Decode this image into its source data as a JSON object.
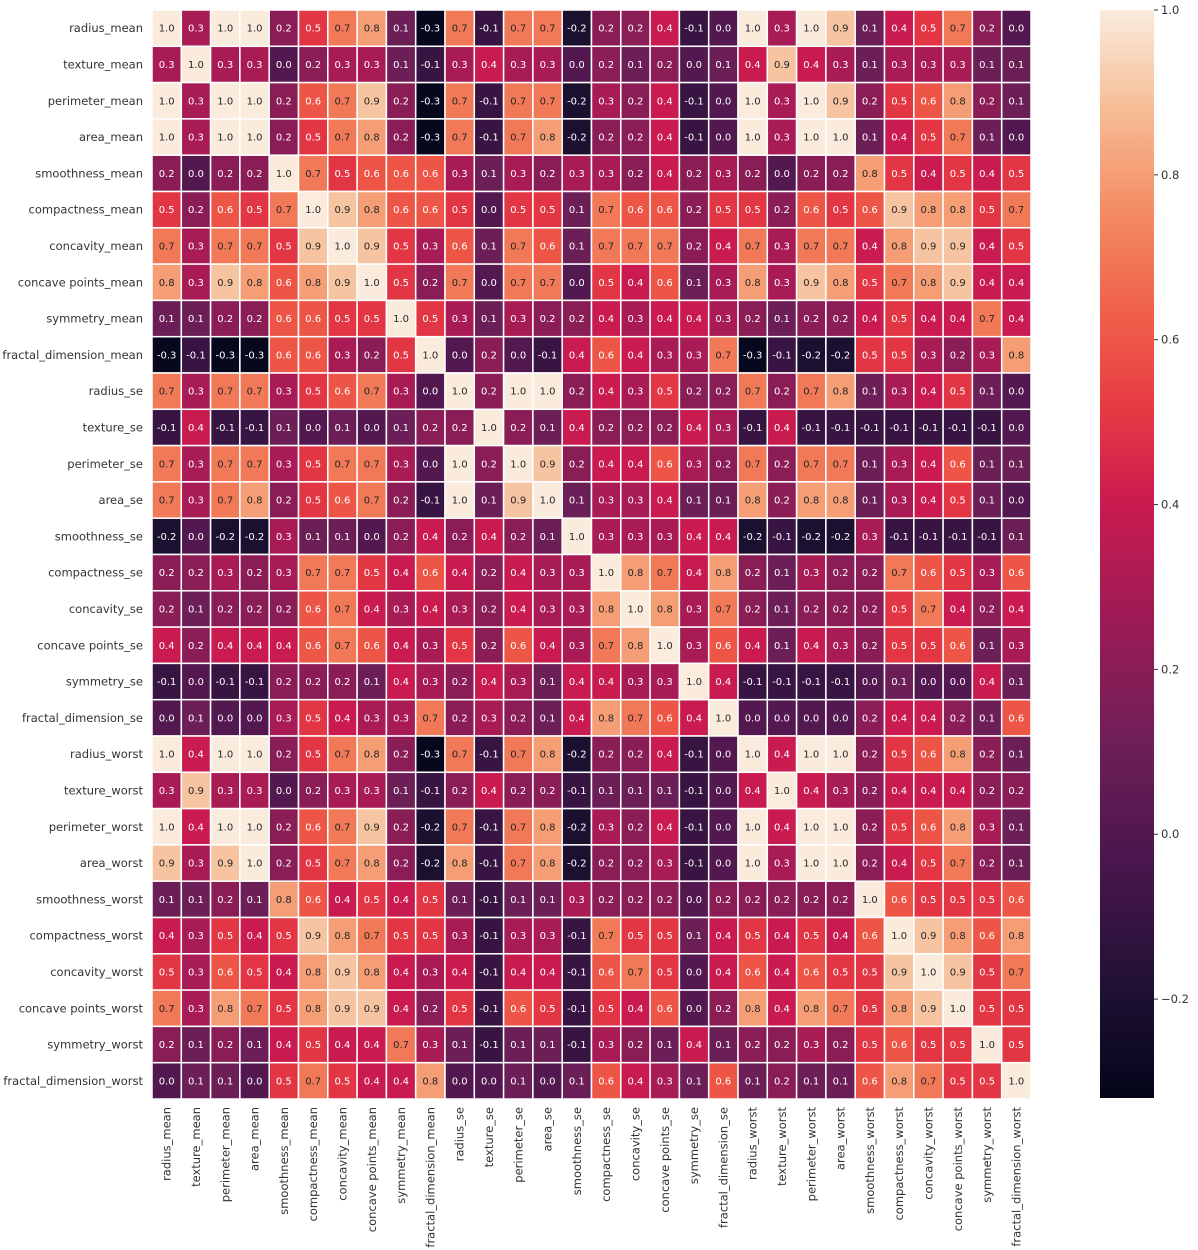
{
  "chart_data": {
    "type": "heatmap",
    "title": "",
    "variables": [
      "radius_mean",
      "texture_mean",
      "perimeter_mean",
      "area_mean",
      "smoothness_mean",
      "compactness_mean",
      "concavity_mean",
      "concave points_mean",
      "symmetry_mean",
      "fractal_dimension_mean",
      "radius_se",
      "texture_se",
      "perimeter_se",
      "area_se",
      "smoothness_se",
      "compactness_se",
      "concavity_se",
      "concave points_se",
      "symmetry_se",
      "fractal_dimension_se",
      "radius_worst",
      "texture_worst",
      "perimeter_worst",
      "area_worst",
      "smoothness_worst",
      "compactness_worst",
      "concavity_worst",
      "concave points_worst",
      "symmetry_worst",
      "fractal_dimension_worst"
    ],
    "matrix": [
      [
        1.0,
        0.3,
        1.0,
        1.0,
        0.2,
        0.5,
        0.7,
        0.8,
        0.1,
        -0.3,
        0.7,
        -0.1,
        0.7,
        0.7,
        -0.2,
        0.2,
        0.2,
        0.4,
        -0.1,
        -0.0,
        1.0,
        0.3,
        1.0,
        0.9,
        0.1,
        0.4,
        0.5,
        0.7,
        0.2,
        0.0
      ],
      [
        0.3,
        1.0,
        0.3,
        0.3,
        -0.0,
        0.2,
        0.3,
        0.3,
        0.1,
        -0.1,
        0.3,
        0.4,
        0.3,
        0.3,
        0.0,
        0.2,
        0.1,
        0.2,
        0.0,
        0.1,
        0.4,
        0.9,
        0.4,
        0.3,
        0.1,
        0.3,
        0.3,
        0.3,
        0.1,
        0.1
      ],
      [
        1.0,
        0.3,
        1.0,
        1.0,
        0.2,
        0.6,
        0.7,
        0.9,
        0.2,
        -0.3,
        0.7,
        -0.1,
        0.7,
        0.7,
        -0.2,
        0.3,
        0.2,
        0.4,
        -0.1,
        -0.0,
        1.0,
        0.3,
        1.0,
        0.9,
        0.2,
        0.5,
        0.6,
        0.8,
        0.2,
        0.1
      ],
      [
        1.0,
        0.3,
        1.0,
        1.0,
        0.2,
        0.5,
        0.7,
        0.8,
        0.2,
        -0.3,
        0.7,
        -0.1,
        0.7,
        0.8,
        -0.2,
        0.2,
        0.2,
        0.4,
        -0.1,
        -0.0,
        1.0,
        0.3,
        1.0,
        1.0,
        0.1,
        0.4,
        0.5,
        0.7,
        0.1,
        0.0
      ],
      [
        0.2,
        -0.0,
        0.2,
        0.2,
        1.0,
        0.7,
        0.5,
        0.6,
        0.6,
        0.6,
        0.3,
        0.1,
        0.3,
        0.2,
        0.3,
        0.3,
        0.2,
        0.4,
        0.2,
        0.3,
        0.2,
        0.0,
        0.2,
        0.2,
        0.8,
        0.5,
        0.4,
        0.5,
        0.4,
        0.5
      ],
      [
        0.5,
        0.2,
        0.6,
        0.5,
        0.7,
        1.0,
        0.9,
        0.8,
        0.6,
        0.6,
        0.5,
        0.0,
        0.5,
        0.5,
        0.1,
        0.7,
        0.6,
        0.6,
        0.2,
        0.5,
        0.5,
        0.2,
        0.6,
        0.5,
        0.6,
        0.9,
        0.8,
        0.8,
        0.5,
        0.7
      ],
      [
        0.7,
        0.3,
        0.7,
        0.7,
        0.5,
        0.9,
        1.0,
        0.9,
        0.5,
        0.3,
        0.6,
        0.1,
        0.7,
        0.6,
        0.1,
        0.7,
        0.7,
        0.7,
        0.2,
        0.4,
        0.7,
        0.3,
        0.7,
        0.7,
        0.4,
        0.8,
        0.9,
        0.9,
        0.4,
        0.5
      ],
      [
        0.8,
        0.3,
        0.9,
        0.8,
        0.6,
        0.8,
        0.9,
        1.0,
        0.5,
        0.2,
        0.7,
        0.0,
        0.7,
        0.7,
        0.0,
        0.5,
        0.4,
        0.6,
        0.1,
        0.3,
        0.8,
        0.3,
        0.9,
        0.8,
        0.5,
        0.7,
        0.8,
        0.9,
        0.4,
        0.4
      ],
      [
        0.1,
        0.1,
        0.2,
        0.2,
        0.6,
        0.6,
        0.5,
        0.5,
        1.0,
        0.5,
        0.3,
        0.1,
        0.3,
        0.2,
        0.2,
        0.4,
        0.3,
        0.4,
        0.4,
        0.3,
        0.2,
        0.1,
        0.2,
        0.2,
        0.4,
        0.5,
        0.4,
        0.4,
        0.7,
        0.4
      ],
      [
        -0.3,
        -0.1,
        -0.3,
        -0.3,
        0.6,
        0.6,
        0.3,
        0.2,
        0.5,
        1.0,
        0.0,
        0.2,
        0.0,
        -0.1,
        0.4,
        0.6,
        0.4,
        0.3,
        0.3,
        0.7,
        -0.3,
        -0.1,
        -0.2,
        -0.2,
        0.5,
        0.5,
        0.3,
        0.2,
        0.3,
        0.8
      ],
      [
        0.7,
        0.3,
        0.7,
        0.7,
        0.3,
        0.5,
        0.6,
        0.7,
        0.3,
        0.0,
        1.0,
        0.2,
        1.0,
        1.0,
        0.2,
        0.4,
        0.3,
        0.5,
        0.2,
        0.2,
        0.7,
        0.2,
        0.7,
        0.8,
        0.1,
        0.3,
        0.4,
        0.5,
        0.1,
        0.0
      ],
      [
        -0.1,
        0.4,
        -0.1,
        -0.1,
        0.1,
        0.0,
        0.1,
        0.0,
        0.1,
        0.2,
        0.2,
        1.0,
        0.2,
        0.1,
        0.4,
        0.2,
        0.2,
        0.2,
        0.4,
        0.3,
        -0.1,
        0.4,
        -0.1,
        -0.1,
        -0.1,
        -0.1,
        -0.1,
        -0.1,
        -0.1,
        -0.0
      ],
      [
        0.7,
        0.3,
        0.7,
        0.7,
        0.3,
        0.5,
        0.7,
        0.7,
        0.3,
        0.0,
        1.0,
        0.2,
        1.0,
        0.9,
        0.2,
        0.4,
        0.4,
        0.6,
        0.3,
        0.2,
        0.7,
        0.2,
        0.7,
        0.7,
        0.1,
        0.3,
        0.4,
        0.6,
        0.1,
        0.1
      ],
      [
        0.7,
        0.3,
        0.7,
        0.8,
        0.2,
        0.5,
        0.6,
        0.7,
        0.2,
        -0.1,
        1.0,
        0.1,
        0.9,
        1.0,
        0.1,
        0.3,
        0.3,
        0.4,
        0.1,
        0.1,
        0.8,
        0.2,
        0.8,
        0.8,
        0.1,
        0.3,
        0.4,
        0.5,
        0.1,
        0.0
      ],
      [
        -0.2,
        0.0,
        -0.2,
        -0.2,
        0.3,
        0.1,
        0.1,
        0.0,
        0.2,
        0.4,
        0.2,
        0.4,
        0.2,
        0.1,
        1.0,
        0.3,
        0.3,
        0.3,
        0.4,
        0.4,
        -0.2,
        -0.1,
        -0.2,
        -0.2,
        0.3,
        -0.1,
        -0.1,
        -0.1,
        -0.1,
        0.1
      ],
      [
        0.2,
        0.2,
        0.3,
        0.2,
        0.3,
        0.7,
        0.7,
        0.5,
        0.4,
        0.6,
        0.4,
        0.2,
        0.4,
        0.3,
        0.3,
        1.0,
        0.8,
        0.7,
        0.4,
        0.8,
        0.2,
        0.1,
        0.3,
        0.2,
        0.2,
        0.7,
        0.6,
        0.5,
        0.3,
        0.6
      ],
      [
        0.2,
        0.1,
        0.2,
        0.2,
        0.2,
        0.6,
        0.7,
        0.4,
        0.3,
        0.4,
        0.3,
        0.2,
        0.4,
        0.3,
        0.3,
        0.8,
        1.0,
        0.8,
        0.3,
        0.7,
        0.2,
        0.1,
        0.2,
        0.2,
        0.2,
        0.5,
        0.7,
        0.4,
        0.2,
        0.4
      ],
      [
        0.4,
        0.2,
        0.4,
        0.4,
        0.4,
        0.6,
        0.7,
        0.6,
        0.4,
        0.3,
        0.5,
        0.2,
        0.6,
        0.4,
        0.3,
        0.7,
        0.8,
        1.0,
        0.3,
        0.6,
        0.4,
        0.1,
        0.4,
        0.3,
        0.2,
        0.5,
        0.5,
        0.6,
        0.1,
        0.3
      ],
      [
        -0.1,
        0.0,
        -0.1,
        -0.1,
        0.2,
        0.2,
        0.2,
        0.1,
        0.4,
        0.3,
        0.2,
        0.4,
        0.3,
        0.1,
        0.4,
        0.4,
        0.3,
        0.3,
        1.0,
        0.4,
        -0.1,
        -0.1,
        -0.1,
        -0.1,
        -0.0,
        0.1,
        0.0,
        -0.0,
        0.4,
        0.1
      ],
      [
        -0.0,
        0.1,
        -0.0,
        -0.0,
        0.3,
        0.5,
        0.4,
        0.3,
        0.3,
        0.7,
        0.2,
        0.3,
        0.2,
        0.1,
        0.4,
        0.8,
        0.7,
        0.6,
        0.4,
        1.0,
        -0.0,
        -0.0,
        -0.0,
        -0.0,
        0.2,
        0.4,
        0.4,
        0.2,
        0.1,
        0.6
      ],
      [
        1.0,
        0.4,
        1.0,
        1.0,
        0.2,
        0.5,
        0.7,
        0.8,
        0.2,
        -0.3,
        0.7,
        -0.1,
        0.7,
        0.8,
        -0.2,
        0.2,
        0.2,
        0.4,
        -0.1,
        -0.0,
        1.0,
        0.4,
        1.0,
        1.0,
        0.2,
        0.5,
        0.6,
        0.8,
        0.2,
        0.1
      ],
      [
        0.3,
        0.9,
        0.3,
        0.3,
        0.0,
        0.2,
        0.3,
        0.3,
        0.1,
        -0.1,
        0.2,
        0.4,
        0.2,
        0.2,
        -0.1,
        0.1,
        0.1,
        0.1,
        -0.1,
        -0.0,
        0.4,
        1.0,
        0.4,
        0.3,
        0.2,
        0.4,
        0.4,
        0.4,
        0.2,
        0.2
      ],
      [
        1.0,
        0.4,
        1.0,
        1.0,
        0.2,
        0.6,
        0.7,
        0.9,
        0.2,
        -0.2,
        0.7,
        -0.1,
        0.7,
        0.8,
        -0.2,
        0.3,
        0.2,
        0.4,
        -0.1,
        -0.0,
        1.0,
        0.4,
        1.0,
        1.0,
        0.2,
        0.5,
        0.6,
        0.8,
        0.3,
        0.1
      ],
      [
        0.9,
        0.3,
        0.9,
        1.0,
        0.2,
        0.5,
        0.7,
        0.8,
        0.2,
        -0.2,
        0.8,
        -0.1,
        0.7,
        0.8,
        -0.2,
        0.2,
        0.2,
        0.3,
        -0.1,
        -0.0,
        1.0,
        0.3,
        1.0,
        1.0,
        0.2,
        0.4,
        0.5,
        0.7,
        0.2,
        0.1
      ],
      [
        0.1,
        0.1,
        0.2,
        0.1,
        0.8,
        0.6,
        0.4,
        0.5,
        0.4,
        0.5,
        0.1,
        -0.1,
        0.1,
        0.1,
        0.3,
        0.2,
        0.2,
        0.2,
        -0.0,
        0.2,
        0.2,
        0.2,
        0.2,
        0.2,
        1.0,
        0.6,
        0.5,
        0.5,
        0.5,
        0.6
      ],
      [
        0.4,
        0.3,
        0.5,
        0.4,
        0.5,
        0.9,
        0.8,
        0.7,
        0.5,
        0.5,
        0.3,
        -0.1,
        0.3,
        0.3,
        -0.1,
        0.7,
        0.5,
        0.5,
        0.1,
        0.4,
        0.5,
        0.4,
        0.5,
        0.4,
        0.6,
        1.0,
        0.9,
        0.8,
        0.6,
        0.8
      ],
      [
        0.5,
        0.3,
        0.6,
        0.5,
        0.4,
        0.8,
        0.9,
        0.8,
        0.4,
        0.3,
        0.4,
        -0.1,
        0.4,
        0.4,
        -0.1,
        0.6,
        0.7,
        0.5,
        0.0,
        0.4,
        0.6,
        0.4,
        0.6,
        0.5,
        0.5,
        0.9,
        1.0,
        0.9,
        0.5,
        0.7
      ],
      [
        0.7,
        0.3,
        0.8,
        0.7,
        0.5,
        0.8,
        0.9,
        0.9,
        0.4,
        0.2,
        0.5,
        -0.1,
        0.6,
        0.5,
        -0.1,
        0.5,
        0.4,
        0.6,
        -0.0,
        0.2,
        0.8,
        0.4,
        0.8,
        0.7,
        0.5,
        0.8,
        0.9,
        1.0,
        0.5,
        0.5
      ],
      [
        0.2,
        0.1,
        0.2,
        0.1,
        0.4,
        0.5,
        0.4,
        0.4,
        0.7,
        0.3,
        0.1,
        -0.1,
        0.1,
        0.1,
        -0.1,
        0.3,
        0.2,
        0.1,
        0.4,
        0.1,
        0.2,
        0.2,
        0.3,
        0.2,
        0.5,
        0.6,
        0.5,
        0.5,
        1.0,
        0.5
      ],
      [
        0.0,
        0.1,
        0.1,
        0.0,
        0.5,
        0.7,
        0.5,
        0.4,
        0.4,
        0.8,
        0.0,
        -0.0,
        0.1,
        0.0,
        0.1,
        0.6,
        0.4,
        0.3,
        0.1,
        0.6,
        0.1,
        0.2,
        0.1,
        0.1,
        0.6,
        0.8,
        0.7,
        0.5,
        0.5,
        1.0
      ]
    ],
    "value_range": [
      -0.32,
      1.0
    ],
    "colormap": "rocket",
    "annotations": "values with 1 decimal",
    "colorbar": {
      "ticks": [
        -0.2,
        0.0,
        0.2,
        0.4,
        0.6,
        0.8,
        1.0
      ],
      "tick_labels": [
        "−0.2",
        "0.0",
        "0.2",
        "0.4",
        "0.6",
        "0.8",
        "1.0"
      ],
      "placement": "right"
    },
    "grid": "white cell separators",
    "legend": "colorbar-right"
  }
}
